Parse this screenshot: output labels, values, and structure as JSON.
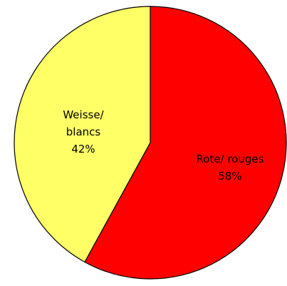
{
  "chart_data": {
    "type": "pie",
    "categories": [
      "Rote/ rouges",
      "Weisse/ blancs"
    ],
    "values": [
      58,
      42
    ],
    "value_labels": [
      "58%",
      "42%"
    ],
    "colors": [
      "#ff0000",
      "#ffff66"
    ]
  }
}
